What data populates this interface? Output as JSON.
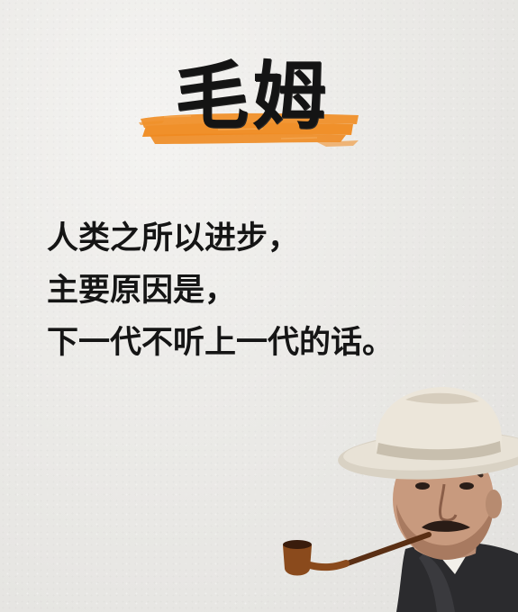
{
  "poster": {
    "title": "毛姆",
    "quote_lines": [
      "人类之所以进步，",
      "主要原因是，",
      "下一代不听上一代的话。"
    ]
  },
  "colors": {
    "background": "#ebeae7",
    "brush_stroke": "#f0902a",
    "text": "#151515",
    "hat": "#e3ddd2",
    "suit": "#2b2b2e",
    "pipe": "#8a4a1c"
  },
  "icons": {
    "brush": "orange-brush-stroke",
    "portrait": "man-with-hat-and-pipe"
  }
}
